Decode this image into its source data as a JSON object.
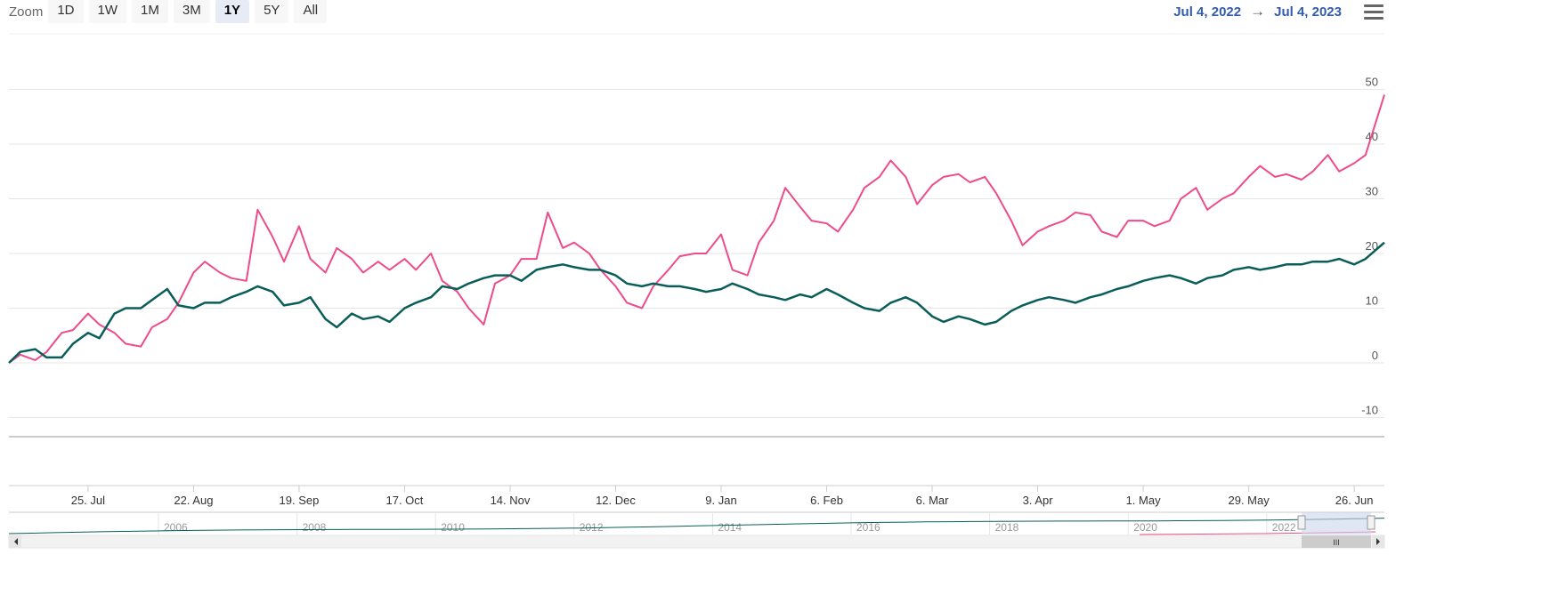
{
  "zoom": {
    "label": "Zoom",
    "buttons": [
      "1D",
      "1W",
      "1M",
      "3M",
      "1Y",
      "5Y",
      "All"
    ],
    "active": "1Y"
  },
  "range": {
    "from": "Jul 4, 2022",
    "arrow": "→",
    "to": "Jul 4, 2023"
  },
  "menu_icon": "hamburger-menu-icon",
  "colors": {
    "pink": "#ee4b8b",
    "teal": "#0a5e5a",
    "grid": "#e6e6e6",
    "navigator_mask": "#ccd6eb"
  },
  "chart_data": {
    "type": "line",
    "ylim": [
      -10,
      50
    ],
    "y_ticks": [
      "-10",
      "0",
      "10",
      "20",
      "30",
      "40",
      "50"
    ],
    "x_ticks": [
      "25. Jul",
      "22. Aug",
      "19. Sep",
      "17. Oct",
      "14. Nov",
      "12. Dec",
      "9. Jan",
      "6. Feb",
      "6. Mar",
      "3. Apr",
      "1. May",
      "29. May",
      "26. Jun"
    ],
    "x_range": [
      "2022-07-04",
      "2023-07-04"
    ],
    "series": [
      {
        "color": "#ee4b8b",
        "x": [
          "2022-07-04",
          "2022-07-07",
          "2022-07-11",
          "2022-07-14",
          "2022-07-18",
          "2022-07-21",
          "2022-07-25",
          "2022-07-28",
          "2022-08-01",
          "2022-08-04",
          "2022-08-08",
          "2022-08-11",
          "2022-08-15",
          "2022-08-18",
          "2022-08-22",
          "2022-08-25",
          "2022-08-29",
          "2022-09-01",
          "2022-09-05",
          "2022-09-08",
          "2022-09-12",
          "2022-09-15",
          "2022-09-19",
          "2022-09-22",
          "2022-09-26",
          "2022-09-29",
          "2022-10-03",
          "2022-10-06",
          "2022-10-10",
          "2022-10-13",
          "2022-10-17",
          "2022-10-20",
          "2022-10-24",
          "2022-10-27",
          "2022-10-31",
          "2022-11-03",
          "2022-11-07",
          "2022-11-10",
          "2022-11-14",
          "2022-11-17",
          "2022-11-21",
          "2022-11-24",
          "2022-11-28",
          "2022-12-01",
          "2022-12-05",
          "2022-12-08",
          "2022-12-12",
          "2022-12-15",
          "2022-12-19",
          "2022-12-22",
          "2022-12-26",
          "2022-12-29",
          "2023-01-02",
          "2023-01-05",
          "2023-01-09",
          "2023-01-12",
          "2023-01-16",
          "2023-01-19",
          "2023-01-23",
          "2023-01-26",
          "2023-01-30",
          "2023-02-02",
          "2023-02-06",
          "2023-02-09",
          "2023-02-13",
          "2023-02-16",
          "2023-02-20",
          "2023-02-23",
          "2023-02-27",
          "2023-03-02",
          "2023-03-06",
          "2023-03-09",
          "2023-03-13",
          "2023-03-16",
          "2023-03-20",
          "2023-03-23",
          "2023-03-27",
          "2023-03-30",
          "2023-04-03",
          "2023-04-06",
          "2023-04-10",
          "2023-04-13",
          "2023-04-17",
          "2023-04-20",
          "2023-04-24",
          "2023-04-27",
          "2023-05-01",
          "2023-05-04",
          "2023-05-08",
          "2023-05-11",
          "2023-05-15",
          "2023-05-18",
          "2023-05-22",
          "2023-05-25",
          "2023-05-29",
          "2023-06-01",
          "2023-06-05",
          "2023-06-08",
          "2023-06-12",
          "2023-06-15",
          "2023-06-19",
          "2023-06-22",
          "2023-06-26",
          "2023-06-29",
          "2023-07-04"
        ],
        "values": [
          0,
          1.5,
          0.5,
          2,
          5.5,
          6,
          9,
          7,
          5.5,
          3.5,
          3,
          6.5,
          8,
          11,
          16.5,
          18.5,
          16.5,
          15.5,
          15,
          28,
          23,
          18.5,
          25,
          19,
          16.5,
          21,
          19,
          16.5,
          18.5,
          17,
          19,
          17,
          20,
          15,
          13,
          10,
          7,
          14.5,
          16,
          19,
          19,
          27.5,
          21,
          22,
          20,
          17,
          14,
          11,
          10,
          14,
          17,
          19.5,
          20,
          20,
          23.5,
          17,
          16,
          22,
          26,
          32,
          28.5,
          26,
          25.5,
          24,
          28,
          32,
          34,
          37,
          34,
          29,
          32.5,
          34,
          34.5,
          33,
          34,
          31,
          26,
          21.5,
          24,
          25,
          26,
          27.5,
          27,
          24,
          23,
          26,
          26,
          25,
          26,
          30,
          32,
          28,
          30,
          31,
          34,
          36,
          34,
          34.5,
          33.5,
          35,
          38,
          35,
          36.5,
          38,
          49
        ]
      },
      {
        "color": "#0a5e5a",
        "x": [
          "2022-07-04",
          "2022-07-07",
          "2022-07-11",
          "2022-07-14",
          "2022-07-18",
          "2022-07-21",
          "2022-07-25",
          "2022-07-28",
          "2022-08-01",
          "2022-08-04",
          "2022-08-08",
          "2022-08-11",
          "2022-08-15",
          "2022-08-18",
          "2022-08-22",
          "2022-08-25",
          "2022-08-29",
          "2022-09-01",
          "2022-09-05",
          "2022-09-08",
          "2022-09-12",
          "2022-09-15",
          "2022-09-19",
          "2022-09-22",
          "2022-09-26",
          "2022-09-29",
          "2022-10-03",
          "2022-10-06",
          "2022-10-10",
          "2022-10-13",
          "2022-10-17",
          "2022-10-20",
          "2022-10-24",
          "2022-10-27",
          "2022-10-31",
          "2022-11-03",
          "2022-11-07",
          "2022-11-10",
          "2022-11-14",
          "2022-11-17",
          "2022-11-21",
          "2022-11-24",
          "2022-11-28",
          "2022-12-01",
          "2022-12-05",
          "2022-12-08",
          "2022-12-12",
          "2022-12-15",
          "2022-12-19",
          "2022-12-22",
          "2022-12-26",
          "2022-12-29",
          "2023-01-02",
          "2023-01-05",
          "2023-01-09",
          "2023-01-12",
          "2023-01-16",
          "2023-01-19",
          "2023-01-23",
          "2023-01-26",
          "2023-01-30",
          "2023-02-02",
          "2023-02-06",
          "2023-02-09",
          "2023-02-13",
          "2023-02-16",
          "2023-02-20",
          "2023-02-23",
          "2023-02-27",
          "2023-03-02",
          "2023-03-06",
          "2023-03-09",
          "2023-03-13",
          "2023-03-16",
          "2023-03-20",
          "2023-03-23",
          "2023-03-27",
          "2023-03-30",
          "2023-04-03",
          "2023-04-06",
          "2023-04-10",
          "2023-04-13",
          "2023-04-17",
          "2023-04-20",
          "2023-04-24",
          "2023-04-27",
          "2023-05-01",
          "2023-05-04",
          "2023-05-08",
          "2023-05-11",
          "2023-05-15",
          "2023-05-18",
          "2023-05-22",
          "2023-05-25",
          "2023-05-29",
          "2023-06-01",
          "2023-06-05",
          "2023-06-08",
          "2023-06-12",
          "2023-06-15",
          "2023-06-19",
          "2023-06-22",
          "2023-06-26",
          "2023-06-29",
          "2023-07-04"
        ],
        "values": [
          0,
          2,
          2.5,
          1,
          1,
          3.5,
          5.5,
          4.5,
          9,
          10,
          10,
          11.5,
          13.5,
          10.5,
          10,
          11,
          11,
          12,
          13,
          14,
          13,
          10.5,
          11,
          12,
          8,
          6.5,
          9,
          8,
          8.5,
          7.5,
          10,
          11,
          12,
          14,
          13.5,
          14.5,
          15.5,
          16,
          16,
          15,
          17,
          17.5,
          18,
          17.5,
          17,
          17,
          16,
          14.5,
          14,
          14.5,
          14,
          14,
          13.5,
          13,
          13.5,
          14.5,
          13.5,
          12.5,
          12,
          11.5,
          12.5,
          12,
          13.5,
          12.5,
          11,
          10,
          9.5,
          11,
          12,
          11,
          8.5,
          7.5,
          8.5,
          8,
          7,
          7.5,
          9.5,
          10.5,
          11.5,
          12,
          11.5,
          11,
          12,
          12.5,
          13.5,
          14,
          15,
          15.5,
          16,
          15.5,
          14.5,
          15.5,
          16,
          17,
          17.5,
          17,
          17.5,
          18,
          18,
          18.5,
          18.5,
          19,
          18,
          19,
          22
        ]
      }
    ]
  },
  "navigator": {
    "labels": [
      "2006",
      "2008",
      "2010",
      "2012",
      "2014",
      "2016",
      "2018",
      "2020",
      "2022"
    ],
    "scrollbar_grip": "III"
  }
}
